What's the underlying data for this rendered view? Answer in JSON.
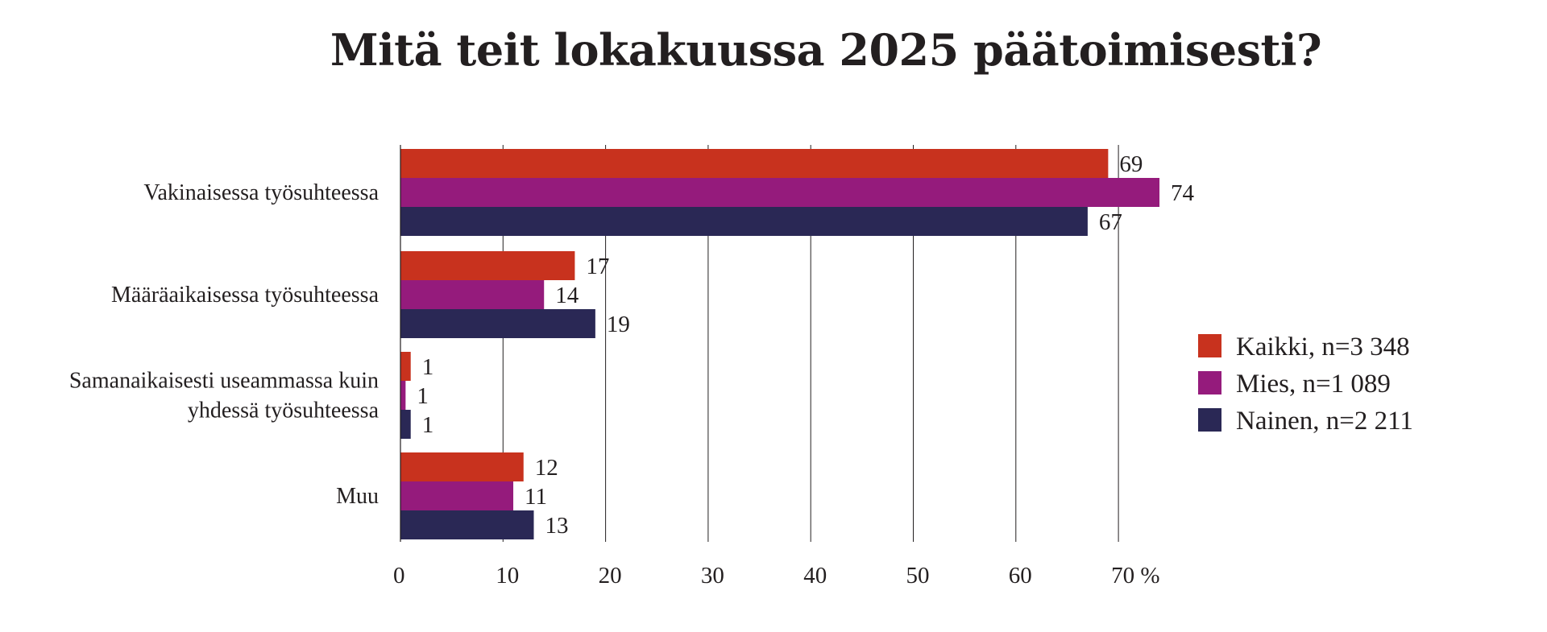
{
  "chart_data": {
    "type": "bar",
    "orientation": "horizontal",
    "title": "Mitä teit lokakuussa 2025 päätoimisesti?",
    "categories": [
      [
        "Vakinaisessa työsuhteessa"
      ],
      [
        "Määräaikaisessa työsuhteessa"
      ],
      [
        "Samanaikaisesti useammassa kuin",
        "yhdessä työsuhteessa"
      ],
      [
        "Muu"
      ]
    ],
    "series": [
      {
        "name": "Kaikki, n=3 348",
        "color": "#c8321e",
        "values": [
          69,
          17,
          1,
          12
        ],
        "labels": [
          "69",
          "17",
          "1",
          "12"
        ]
      },
      {
        "name": "Mies, n=1 089",
        "color": "#951b7c",
        "values": [
          74,
          14,
          0.5,
          11
        ],
        "labels": [
          "74",
          "14",
          "1",
          "11"
        ]
      },
      {
        "name": "Nainen, n=2 211",
        "color": "#2a2855",
        "values": [
          67,
          19,
          1,
          13
        ],
        "labels": [
          "67",
          "19",
          "1",
          "13"
        ]
      }
    ],
    "xlim": [
      0,
      70
    ],
    "xticks": [
      0,
      10,
      20,
      30,
      40,
      50,
      60,
      70
    ],
    "xtick_labels": [
      "0",
      "10",
      "20",
      "30",
      "40",
      "50",
      "60",
      "70 %"
    ],
    "xlabel": "",
    "ylabel": "",
    "grid": true,
    "legend_position": "right"
  }
}
